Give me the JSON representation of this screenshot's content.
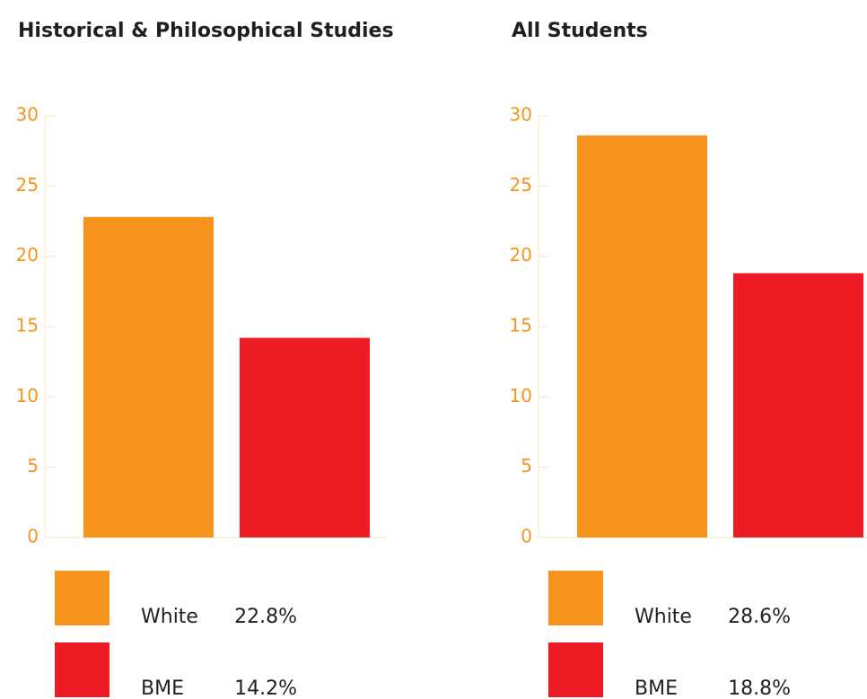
{
  "chart_data": [
    {
      "type": "bar",
      "title": "Historical & Philosophical Studies",
      "categories": [
        "White",
        "BME"
      ],
      "values": [
        22.8,
        14.2
      ],
      "value_labels": [
        "22.8%",
        "14.2%"
      ],
      "colors": [
        "#f7941e",
        "#ed1c24"
      ],
      "ylim": [
        0,
        30
      ],
      "yticks": [
        0,
        5,
        10,
        15,
        20,
        25,
        30
      ]
    },
    {
      "type": "bar",
      "title": "All Students",
      "categories": [
        "White",
        "BME"
      ],
      "values": [
        28.6,
        18.8
      ],
      "value_labels": [
        "28.6%",
        "18.8%"
      ],
      "colors": [
        "#f7941e",
        "#ed1c24"
      ],
      "ylim": [
        0,
        30
      ],
      "yticks": [
        0,
        5,
        10,
        15,
        20,
        25,
        30
      ]
    }
  ]
}
